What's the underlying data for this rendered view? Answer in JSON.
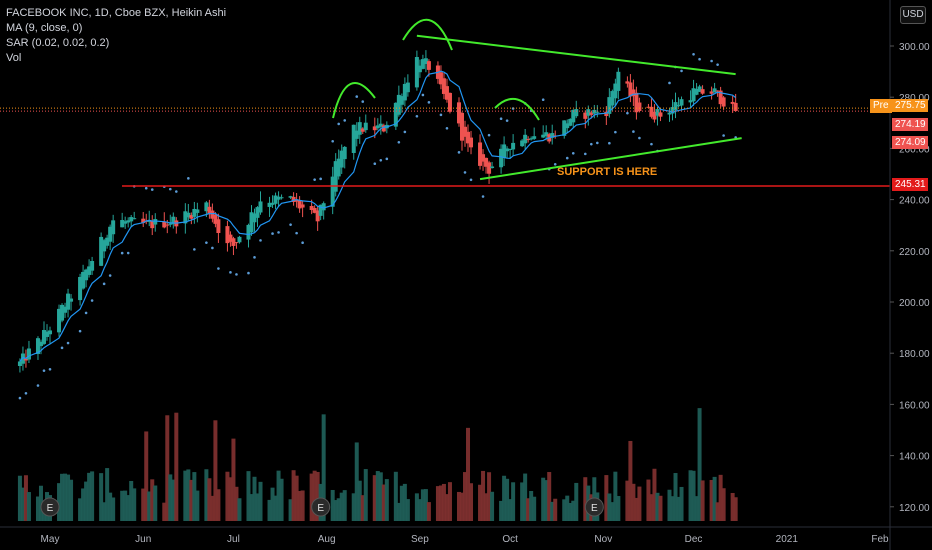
{
  "header": {
    "title": "FACEBOOK INC, 1D, Cboe BZX, Heikin Ashi",
    "indicators": [
      "MA (9, close, 0)",
      "SAR (0.02, 0.02, 0.2)",
      "Vol"
    ],
    "currency": "USD"
  },
  "price_axis": {
    "ticks": [
      "300.00",
      "280.00",
      "260.00",
      "240.00",
      "220.00",
      "200.00",
      "180.00",
      "160.00",
      "140.00",
      "120.00"
    ]
  },
  "price_tags": {
    "pre_label": "Pre",
    "current": "275.75",
    "tag_a": "274.19",
    "tag_b": "274.09",
    "support": "245.31"
  },
  "time_axis": {
    "ticks": [
      "May",
      "Jun",
      "Jul",
      "Aug",
      "Sep",
      "Oct",
      "Nov",
      "Dec",
      "2021",
      "Feb"
    ]
  },
  "annotations": {
    "support_text": "SUPPORT IS HERE",
    "earnings_marker": "E"
  },
  "colors": {
    "up": "#26a69a",
    "down": "#ef5350",
    "ma": "#2196f3",
    "sar": "#5b9bd5",
    "trend": "#43ea2c",
    "support_line": "#e31b1b",
    "pre_tag": "#f7931a"
  },
  "chart_data": {
    "type": "candlestick",
    "series_style": "Heikin Ashi",
    "interval": "1D",
    "ylim": [
      116,
      304
    ],
    "resistance_trendline": [
      [
        "2020-08-31",
        304
      ],
      [
        "2020-12-15",
        289
      ]
    ],
    "support_trendline": [
      [
        "2020-09-21",
        248
      ],
      [
        "2020-12-17",
        264
      ]
    ],
    "support_level": 245.31,
    "last_close": 275.75,
    "price_path": [
      [
        "2020-04-21",
        176
      ],
      [
        "2020-05-01",
        190
      ],
      [
        "2020-05-12",
        210
      ],
      [
        "2020-05-22",
        232
      ],
      [
        "2020-06-02",
        230
      ],
      [
        "2020-06-12",
        232
      ],
      [
        "2020-06-22",
        238
      ],
      [
        "2020-06-29",
        222
      ],
      [
        "2020-07-01",
        222
      ],
      [
        "2020-07-10",
        240
      ],
      [
        "2020-07-20",
        240
      ],
      [
        "2020-07-29",
        232
      ],
      [
        "2020-08-03",
        250
      ],
      [
        "2020-08-10",
        268
      ],
      [
        "2020-08-20",
        268
      ],
      [
        "2020-08-31",
        295
      ],
      [
        "2020-09-04",
        292
      ],
      [
        "2020-09-10",
        278
      ],
      [
        "2020-09-18",
        258
      ],
      [
        "2020-09-24",
        252
      ],
      [
        "2020-10-01",
        262
      ],
      [
        "2020-10-08",
        266
      ],
      [
        "2020-10-15",
        265
      ],
      [
        "2020-10-22",
        273
      ],
      [
        "2020-11-02",
        275
      ],
      [
        "2020-11-06",
        290
      ],
      [
        "2020-11-12",
        276
      ],
      [
        "2020-11-20",
        273
      ],
      [
        "2020-12-01",
        282
      ],
      [
        "2020-12-08",
        282
      ],
      [
        "2020-12-14",
        275
      ]
    ]
  }
}
